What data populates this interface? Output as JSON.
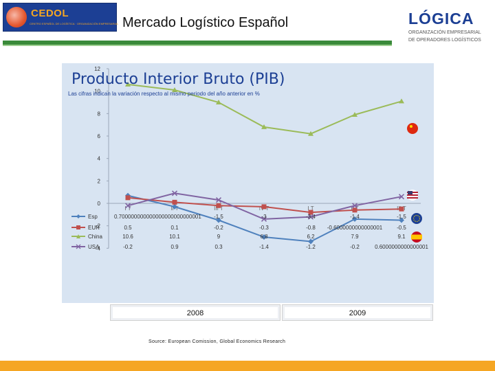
{
  "header": {
    "cedol_name": "CEDOL",
    "cedol_tagline": "CENTRO ESPAÑOL DE LOGÍSTICA · ORGANIZACIÓN EMPRESARIAL",
    "title": "Mercado Logístico Español",
    "logica_name": "LÓGICA",
    "logica_tagline_1": "ORGANIZACIÓN EMPRESARIAL",
    "logica_tagline_2": "DE OPERADORES LOGÍSTICOS"
  },
  "colors": {
    "spain": "#4f81bd",
    "eur": "#c0504d",
    "china": "#9bbb59",
    "usa": "#8064a2",
    "panel": "#d8e4f2",
    "accent": "#1c3f94",
    "footer": "#f5a623"
  },
  "icons": [
    "cedol-logo-icon",
    "china-flag-icon",
    "usa-flag-icon",
    "eu-flag-icon",
    "spain-flag-icon"
  ],
  "chart_data": {
    "type": "line",
    "title": "Producto Interior Bruto (PIB)",
    "subtitle": "Las cifras indican la variación respecto al mismo periodo del año anterior en %",
    "categories": [
      "I T",
      "II T",
      "III T",
      "IV T",
      "I T",
      "II T",
      "III T"
    ],
    "ylim": [
      -4,
      12
    ],
    "yticks": [
      "12",
      "10",
      "8",
      "6",
      "4",
      "2",
      "0",
      "-2",
      "-4"
    ],
    "grid": false,
    "legend": "table-below",
    "series": [
      {
        "name": "Esp",
        "values": [
          0.7,
          -0.3,
          -1.5,
          -3,
          -3.4,
          -1.4,
          -1.5
        ],
        "labels": [
          "0.700000000000000000000000001",
          "",
          "-1.5",
          "-3",
          "-3.4",
          "-1.4",
          "-1.5"
        ]
      },
      {
        "name": "EUR",
        "values": [
          0.5,
          0.1,
          -0.2,
          -0.3,
          -0.8,
          -0.6,
          -0.5
        ],
        "labels": [
          "0.5",
          "0.1",
          "-0.2",
          "-0.3",
          "-0.8",
          "-0.6000000000000001",
          "-0.5"
        ]
      },
      {
        "name": "China",
        "values": [
          10.6,
          10.1,
          9,
          6.8,
          6.2,
          7.9,
          9.1
        ],
        "labels": [
          "10.6",
          "10.1",
          "9",
          "6.8",
          "6.2",
          "7.9",
          "9.1"
        ]
      },
      {
        "name": "USA",
        "values": [
          -0.2,
          0.9,
          0.3,
          -1.4,
          -1.2,
          -0.2,
          0.6
        ],
        "labels": [
          "-0.2",
          "0.9",
          "0.3",
          "-1.4",
          "-1.2",
          "-0.2",
          "0.6000000000000001"
        ]
      }
    ],
    "year_groups": [
      "2008",
      "2009"
    ]
  },
  "source": "Source: European Comission, Global Economics Research"
}
